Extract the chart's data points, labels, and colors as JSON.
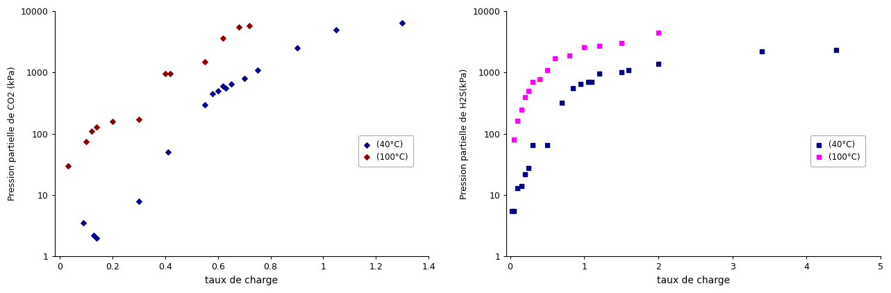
{
  "co2_40C_x": [
    0.09,
    0.13,
    0.14,
    0.3,
    0.41,
    0.55,
    0.58,
    0.6,
    0.62,
    0.63,
    0.65,
    0.7,
    0.75,
    0.9,
    1.05,
    1.3
  ],
  "co2_40C_y": [
    3.5,
    2.2,
    2.0,
    8.0,
    50,
    300,
    450,
    500,
    600,
    550,
    650,
    800,
    1100,
    2500,
    5000,
    6500
  ],
  "co2_100C_x": [
    0.03,
    0.1,
    0.12,
    0.14,
    0.2,
    0.3,
    0.4,
    0.42,
    0.55,
    0.62,
    0.68,
    0.72
  ],
  "co2_100C_y": [
    30,
    75,
    110,
    130,
    160,
    170,
    950,
    970,
    1500,
    3600,
    5500,
    5800
  ],
  "h2s_40C_x": [
    0.02,
    0.05,
    0.1,
    0.15,
    0.2,
    0.25,
    0.3,
    0.5,
    0.7,
    0.85,
    0.95,
    1.05,
    1.1,
    1.2,
    1.5,
    1.6,
    2.0,
    3.4,
    4.4
  ],
  "h2s_40C_y": [
    5.5,
    5.5,
    13,
    14,
    22,
    28,
    65,
    65,
    320,
    550,
    650,
    700,
    700,
    960,
    1000,
    1100,
    1400,
    2200,
    2300
  ],
  "h2s_100C_x": [
    0.05,
    0.1,
    0.15,
    0.2,
    0.25,
    0.3,
    0.4,
    0.5,
    0.6,
    0.8,
    1.0,
    1.2,
    1.5,
    2.0
  ],
  "h2s_100C_y": [
    80,
    165,
    250,
    400,
    500,
    700,
    780,
    1100,
    1700,
    1900,
    2600,
    2700,
    3000,
    4500
  ],
  "co2_color_40": "#00008B",
  "co2_color_100": "#8B0000",
  "h2s_color_40": "#000080",
  "h2s_color_100": "#FF00FF",
  "co2_ylabel": "Pression partielle de CO2 (kPa)",
  "h2s_ylabel": "Pression partielle de H2S(kPa)",
  "xlabel": "taux de charge",
  "legend_40_label_co2": "(40°C)",
  "legend_100_label_co2": "(100°C)",
  "legend_40_label_h2s": "(40°C)",
  "legend_100_label_h2s": "(100°C)",
  "co2_xlim": [
    -0.02,
    1.4
  ],
  "h2s_xlim": [
    -0.05,
    5
  ],
  "ylim_min": 1,
  "ylim_max": 10000,
  "background_color": "#ffffff"
}
